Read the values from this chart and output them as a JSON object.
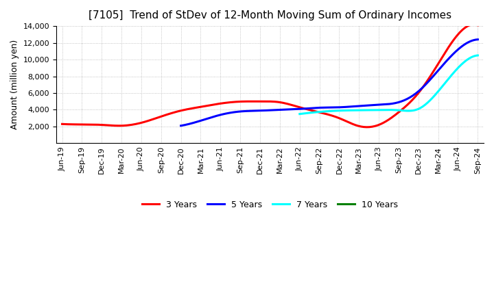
{
  "title": "[7105]  Trend of StDev of 12-Month Moving Sum of Ordinary Incomes",
  "ylabel": "Amount (million yen)",
  "ylim": [
    0,
    14000
  ],
  "yticks": [
    2000,
    4000,
    6000,
    8000,
    10000,
    12000,
    14000
  ],
  "x_labels": [
    "Jun-19",
    "Sep-19",
    "Dec-19",
    "Mar-20",
    "Jun-20",
    "Sep-20",
    "Dec-20",
    "Mar-21",
    "Jun-21",
    "Sep-21",
    "Dec-21",
    "Mar-22",
    "Jun-22",
    "Sep-22",
    "Dec-22",
    "Mar-23",
    "Jun-23",
    "Sep-23",
    "Dec-23",
    "Mar-24",
    "Jun-24",
    "Sep-24"
  ],
  "series": {
    "3 Years": {
      "color": "#FF0000",
      "values": [
        2300,
        2250,
        2200,
        2100,
        2450,
        3200,
        3900,
        4350,
        4750,
        4980,
        5000,
        4900,
        4300,
        3700,
        3000,
        2050,
        2200,
        3700,
        6000,
        9500,
        13000,
        14100
      ]
    },
    "5 Years": {
      "color": "#0000FF",
      "values": [
        null,
        null,
        null,
        null,
        null,
        null,
        2100,
        2700,
        3400,
        3800,
        3900,
        4000,
        4100,
        4250,
        4300,
        4450,
        4600,
        4900,
        6200,
        8700,
        11200,
        12400
      ]
    },
    "7 Years": {
      "color": "#00FFFF",
      "values": [
        null,
        null,
        null,
        null,
        null,
        null,
        null,
        null,
        null,
        null,
        null,
        null,
        3500,
        3750,
        3900,
        3950,
        3980,
        3950,
        4100,
        6200,
        9000,
        10500
      ]
    },
    "10 Years": {
      "color": "#008000",
      "values": [
        null,
        null,
        null,
        null,
        null,
        null,
        null,
        null,
        null,
        null,
        null,
        null,
        null,
        null,
        null,
        null,
        null,
        null,
        null,
        null,
        null,
        null
      ]
    }
  },
  "background_color": "#FFFFFF",
  "grid_color": "#AAAAAA",
  "title_fontsize": 11,
  "tick_fontsize": 8,
  "legend_fontsize": 9
}
